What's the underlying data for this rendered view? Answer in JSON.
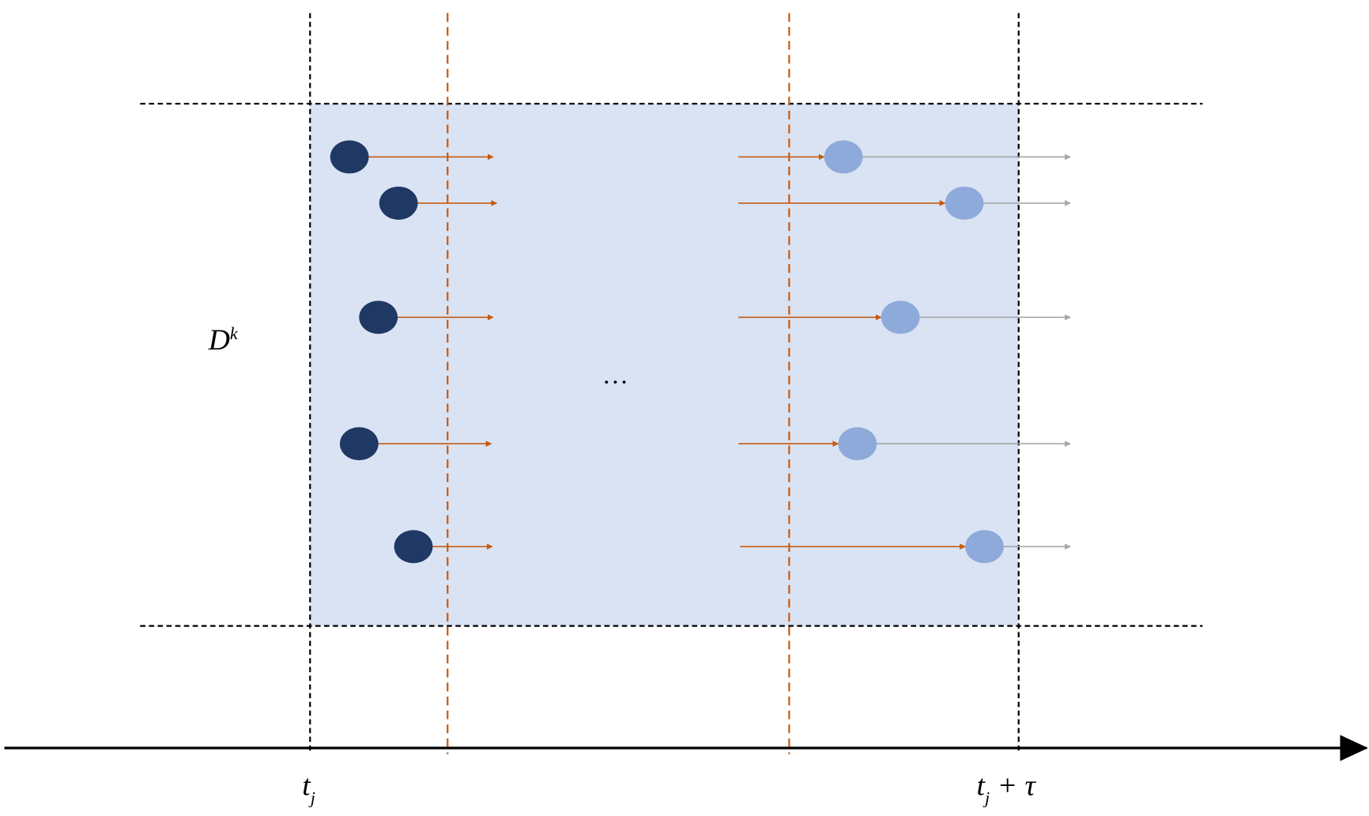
{
  "region_label": {
    "base": "D",
    "sup": "k"
  },
  "ellipsis": "…",
  "time_start": {
    "base": "t",
    "sub": "j"
  },
  "time_end": {
    "base": "t",
    "sub": "j",
    "rest": " + τ"
  }
}
